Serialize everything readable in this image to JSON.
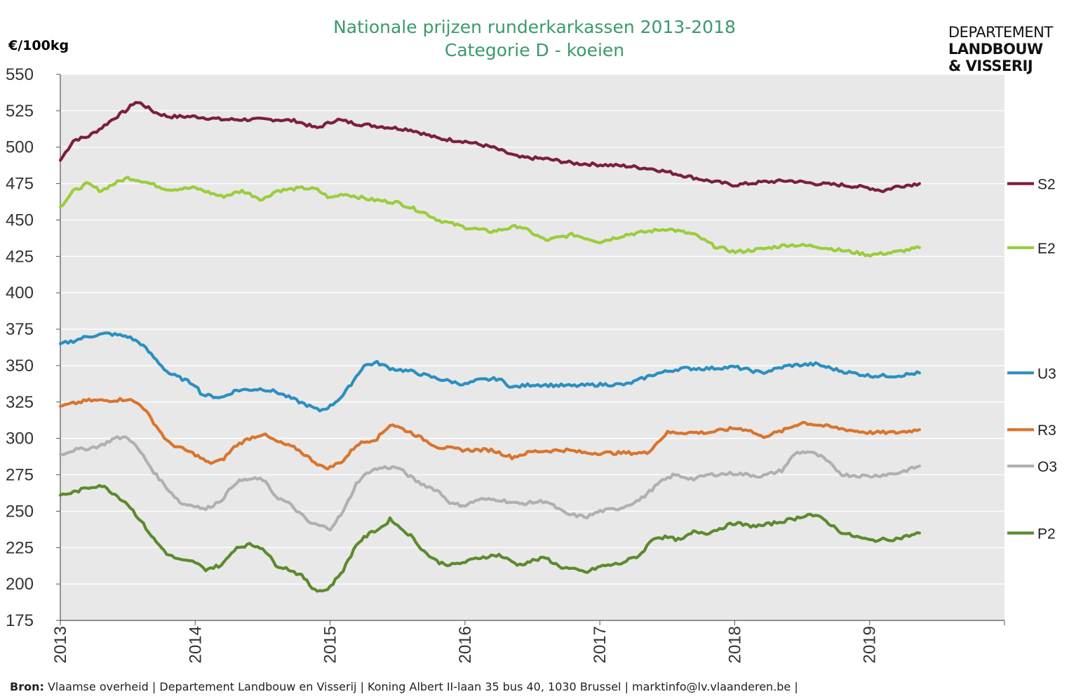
{
  "header": {
    "title_line1": "Nationale prijzen runderkarkassen 2013-2018",
    "title_line2": "Categorie D - koeien",
    "y_unit": "€/100kg",
    "logo_line1": "DEPARTEMENT",
    "logo_line2": "LANDBOUW",
    "logo_line3": "& VISSERIJ"
  },
  "footer": {
    "source_label": "Bron:",
    "source_text": "Vlaamse overheid  |  Departement  Landbouw  en  Visserij  |  Koning  Albert  II-laan  35  bus  40,  1030 Brussel  |   marktinfo@lv.vlaanderen.be  |"
  },
  "colors": {
    "plot_background": "#e8e8e8",
    "title": "#3a9a6a",
    "S2": "#7b1f3a",
    "E2": "#9acd3c",
    "U3": "#2b8fc0",
    "R3": "#d9742c",
    "O3": "#b0b0b0",
    "P2": "#5c8a2e"
  },
  "chart_data": {
    "type": "line",
    "title": "Nationale prijzen runderkarkassen 2013-2018 Categorie D - koeien",
    "ylabel": "€/100kg",
    "xlabel": "",
    "ylim": [
      175,
      550
    ],
    "yticks": [
      175,
      200,
      225,
      250,
      275,
      300,
      325,
      350,
      375,
      400,
      425,
      450,
      475,
      500,
      525,
      550
    ],
    "xlim": [
      2013.0,
      2020.0
    ],
    "xticks": [
      "2013",
      "2014",
      "2015",
      "2016",
      "2017",
      "2018",
      "2019"
    ],
    "horizontal_gridlines": true,
    "legend_position": "right",
    "series": [
      {
        "name": "S2",
        "x": [
          2013.0,
          2013.1,
          2013.2,
          2013.3,
          2013.4,
          2013.5,
          2013.55,
          2013.6,
          2013.7,
          2013.8,
          2014.0,
          2014.2,
          2014.4,
          2014.6,
          2014.75,
          2014.9,
          2015.0,
          2015.05,
          2015.2,
          2015.4,
          2015.6,
          2015.8,
          2016.0,
          2016.2,
          2016.4,
          2016.6,
          2016.8,
          2017.0,
          2017.2,
          2017.4,
          2017.6,
          2017.8,
          2018.0,
          2018.2,
          2018.4,
          2018.6,
          2018.8,
          2019.0,
          2019.1,
          2019.2,
          2019.37
        ],
        "y": [
          491,
          505,
          507,
          513,
          520,
          526,
          531,
          530,
          524,
          521,
          521,
          519,
          519,
          519,
          518,
          513,
          517,
          519,
          516,
          514,
          512,
          506,
          504,
          500,
          493,
          492,
          489,
          488,
          487,
          485,
          481,
          477,
          474,
          476,
          477,
          475,
          474,
          472,
          470,
          473,
          475
        ]
      },
      {
        "name": "E2",
        "x": [
          2013.0,
          2013.1,
          2013.2,
          2013.3,
          2013.4,
          2013.5,
          2013.6,
          2013.7,
          2013.8,
          2014.0,
          2014.2,
          2014.35,
          2014.5,
          2014.6,
          2014.8,
          2014.9,
          2015.0,
          2015.1,
          2015.3,
          2015.5,
          2015.7,
          2015.8,
          2016.0,
          2016.2,
          2016.4,
          2016.6,
          2016.8,
          2017.0,
          2017.2,
          2017.5,
          2017.7,
          2017.85,
          2018.0,
          2018.2,
          2018.4,
          2018.6,
          2018.8,
          2019.0,
          2019.2,
          2019.37
        ],
        "y": [
          459,
          470,
          475,
          470,
          475,
          479,
          477,
          474,
          471,
          472,
          466,
          470,
          464,
          470,
          472,
          471,
          465,
          468,
          464,
          462,
          455,
          450,
          445,
          442,
          446,
          436,
          440,
          435,
          440,
          444,
          440,
          432,
          428,
          430,
          433,
          432,
          429,
          426,
          428,
          431
        ]
      },
      {
        "name": "U3",
        "x": [
          2013.0,
          2013.1,
          2013.2,
          2013.35,
          2013.5,
          2013.6,
          2013.7,
          2013.8,
          2014.0,
          2014.05,
          2014.2,
          2014.3,
          2014.5,
          2014.6,
          2014.7,
          2014.85,
          2014.92,
          2015.0,
          2015.1,
          2015.25,
          2015.35,
          2015.45,
          2015.6,
          2015.8,
          2016.0,
          2016.1,
          2016.25,
          2016.35,
          2016.5,
          2016.8,
          2017.0,
          2017.2,
          2017.4,
          2017.6,
          2017.8,
          2018.0,
          2018.2,
          2018.4,
          2018.6,
          2018.8,
          2019.0,
          2019.2,
          2019.37
        ],
        "y": [
          365,
          367,
          370,
          372,
          370,
          365,
          355,
          345,
          337,
          330,
          328,
          333,
          334,
          332,
          328,
          322,
          319,
          322,
          330,
          350,
          352,
          348,
          346,
          341,
          337,
          340,
          341,
          335,
          337,
          336,
          337,
          337,
          344,
          348,
          348,
          349,
          345,
          350,
          351,
          346,
          343,
          343,
          345
        ]
      },
      {
        "name": "R3",
        "x": [
          2013.0,
          2013.1,
          2013.2,
          2013.35,
          2013.5,
          2013.6,
          2013.7,
          2013.8,
          2014.0,
          2014.1,
          2014.2,
          2014.3,
          2014.4,
          2014.5,
          2014.6,
          2014.75,
          2014.9,
          2014.95,
          2015.0,
          2015.1,
          2015.2,
          2015.35,
          2015.45,
          2015.6,
          2015.8,
          2016.0,
          2016.2,
          2016.35,
          2016.5,
          2016.75,
          2016.9,
          2017.0,
          2017.2,
          2017.35,
          2017.5,
          2017.8,
          2018.0,
          2018.1,
          2018.2,
          2018.35,
          2018.5,
          2018.7,
          2018.9,
          2019.0,
          2019.2,
          2019.37
        ],
        "y": [
          322,
          324,
          326,
          326,
          327,
          323,
          310,
          297,
          289,
          283,
          285,
          295,
          300,
          303,
          298,
          293,
          283,
          280,
          280,
          285,
          296,
          300,
          310,
          304,
          294,
          292,
          292,
          287,
          291,
          292,
          290,
          290,
          290,
          290,
          304,
          304,
          307,
          306,
          301,
          305,
          311,
          308,
          305,
          304,
          304,
          306
        ]
      },
      {
        "name": "O3",
        "x": [
          2013.0,
          2013.1,
          2013.2,
          2013.3,
          2013.4,
          2013.5,
          2013.6,
          2013.7,
          2013.8,
          2013.9,
          2014.0,
          2014.07,
          2014.2,
          2014.3,
          2014.4,
          2014.5,
          2014.6,
          2014.7,
          2014.85,
          2015.0,
          2015.1,
          2015.2,
          2015.3,
          2015.4,
          2015.5,
          2015.65,
          2015.8,
          2015.9,
          2016.0,
          2016.1,
          2016.25,
          2016.4,
          2016.6,
          2016.75,
          2016.9,
          2017.0,
          2017.15,
          2017.3,
          2017.45,
          2017.55,
          2017.7,
          2017.8,
          2018.0,
          2018.2,
          2018.35,
          2018.45,
          2018.55,
          2018.65,
          2018.8,
          2019.0,
          2019.2,
          2019.37
        ],
        "y": [
          289,
          292,
          293,
          295,
          300,
          301,
          290,
          276,
          265,
          255,
          254,
          251,
          258,
          270,
          272,
          272,
          260,
          255,
          242,
          238,
          250,
          270,
          278,
          280,
          280,
          270,
          264,
          255,
          254,
          258,
          258,
          255,
          257,
          248,
          246,
          250,
          252,
          258,
          270,
          275,
          272,
          275,
          276,
          274,
          278,
          290,
          291,
          287,
          275,
          274,
          276,
          281
        ]
      },
      {
        "name": "P2",
        "x": [
          2013.0,
          2013.1,
          2013.2,
          2013.3,
          2013.4,
          2013.5,
          2013.6,
          2013.7,
          2013.8,
          2013.9,
          2014.0,
          2014.07,
          2014.2,
          2014.3,
          2014.4,
          2014.5,
          2014.6,
          2014.7,
          2014.8,
          2014.87,
          2014.95,
          2015.0,
          2015.1,
          2015.2,
          2015.3,
          2015.4,
          2015.45,
          2015.5,
          2015.6,
          2015.7,
          2015.8,
          2015.9,
          2016.0,
          2016.1,
          2016.25,
          2016.4,
          2016.5,
          2016.6,
          2016.7,
          2016.8,
          2016.9,
          2017.0,
          2017.15,
          2017.3,
          2017.4,
          2017.5,
          2017.6,
          2017.7,
          2017.8,
          2018.0,
          2018.1,
          2018.2,
          2018.35,
          2018.45,
          2018.55,
          2018.65,
          2018.8,
          2019.0,
          2019.2,
          2019.37
        ],
        "y": [
          261,
          263,
          266,
          268,
          262,
          255,
          243,
          230,
          220,
          216,
          215,
          210,
          213,
          225,
          227,
          225,
          213,
          210,
          205,
          197,
          195,
          198,
          210,
          228,
          235,
          240,
          245,
          240,
          233,
          222,
          215,
          213,
          215,
          218,
          220,
          213,
          216,
          218,
          212,
          210,
          208,
          212,
          214,
          220,
          232,
          232,
          230,
          236,
          235,
          242,
          240,
          240,
          243,
          245,
          248,
          245,
          235,
          230,
          231,
          235
        ]
      }
    ]
  }
}
